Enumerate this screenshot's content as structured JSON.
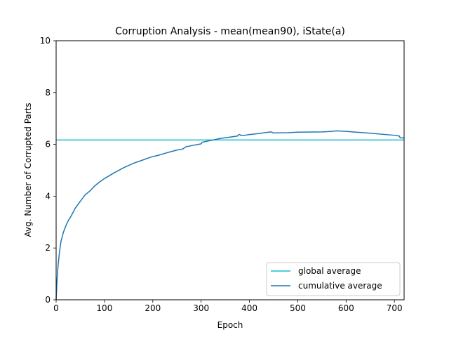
{
  "chart_data": {
    "type": "line",
    "title": "Corruption Analysis - mean(mean90), iState(a)",
    "xlabel": "Epoch",
    "ylabel": "Avg. Number of Corrupted Parts",
    "xlim": [
      0,
      720
    ],
    "ylim": [
      0,
      10
    ],
    "xticks": [
      0,
      100,
      200,
      300,
      400,
      500,
      600,
      700
    ],
    "yticks": [
      0,
      2,
      4,
      6,
      8,
      10
    ],
    "grid": false,
    "legend_position": "lower right",
    "series": [
      {
        "name": "global average",
        "color": "#17becf",
        "x": [
          0,
          720
        ],
        "y": [
          6.17,
          6.17
        ]
      },
      {
        "name": "cumulative average",
        "color": "#1f77b4",
        "x": [
          0,
          1,
          2,
          3,
          5,
          7,
          10,
          15,
          20,
          25,
          30,
          40,
          50,
          60,
          70,
          80,
          90,
          100,
          120,
          140,
          160,
          180,
          195,
          200,
          210,
          230,
          250,
          262,
          268,
          280,
          300,
          302,
          320,
          340,
          360,
          375,
          378,
          380,
          382,
          390,
          400,
          420,
          440,
          445,
          450,
          480,
          500,
          550,
          570,
          580,
          600,
          650,
          700,
          710,
          712,
          720
        ],
        "y": [
          0.0,
          0.4,
          0.8,
          1.1,
          1.5,
          1.85,
          2.25,
          2.6,
          2.85,
          3.05,
          3.2,
          3.55,
          3.8,
          4.05,
          4.2,
          4.4,
          4.55,
          4.68,
          4.9,
          5.1,
          5.27,
          5.4,
          5.5,
          5.53,
          5.57,
          5.68,
          5.78,
          5.82,
          5.9,
          5.95,
          6.02,
          6.08,
          6.15,
          6.23,
          6.28,
          6.32,
          6.38,
          6.38,
          6.35,
          6.35,
          6.38,
          6.42,
          6.47,
          6.48,
          6.44,
          6.45,
          6.47,
          6.48,
          6.5,
          6.52,
          6.5,
          6.43,
          6.35,
          6.32,
          6.25,
          6.25
        ]
      }
    ]
  }
}
